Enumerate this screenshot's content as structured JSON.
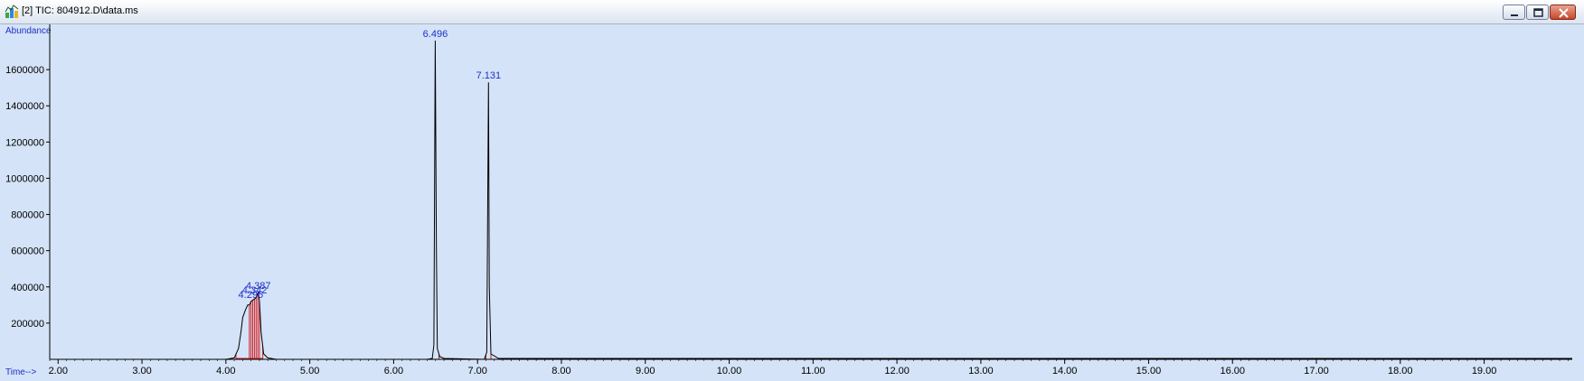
{
  "window": {
    "title": "[2] TIC: 804912.D\\data.ms",
    "icon": "chromatogram-app-icon",
    "buttons": [
      "minimize-icon",
      "restore-icon",
      "close-icon"
    ]
  },
  "chart_data": {
    "type": "line",
    "title": "",
    "ylabel": "Abundance",
    "xlabel": "Time-->",
    "xlim": [
      1.9,
      20.05
    ],
    "ylim": [
      0,
      1800000
    ],
    "xticks": [
      "2.00",
      "3.00",
      "4.00",
      "5.00",
      "6.00",
      "7.00",
      "8.00",
      "9.00",
      "10.00",
      "11.00",
      "12.00",
      "13.00",
      "14.00",
      "15.00",
      "16.00",
      "17.00",
      "18.00",
      "19.00"
    ],
    "yticks": [
      "200000",
      "400000",
      "600000",
      "800000",
      "1000000",
      "1200000",
      "1400000",
      "1600000"
    ],
    "series": [
      {
        "color": "#000000",
        "x": [
          1.9,
          4.0,
          4.1,
          4.15,
          4.18,
          4.2,
          4.23,
          4.26,
          4.28,
          4.3,
          4.33,
          4.36,
          4.387,
          4.4,
          4.42,
          4.45,
          4.5,
          4.6,
          6.4,
          6.46,
          6.48,
          6.496,
          6.51,
          6.52,
          6.55,
          6.6,
          7.08,
          7.11,
          7.131,
          7.14,
          7.16,
          7.25,
          20.05
        ],
        "y": [
          0,
          0,
          8000,
          60000,
          150000,
          230000,
          270000,
          300000,
          300000,
          320000,
          330000,
          340000,
          370000,
          320000,
          150000,
          30000,
          8000,
          0,
          0,
          5000,
          80000,
          1760000,
          600000,
          60000,
          15000,
          5000,
          0,
          40000,
          1530000,
          400000,
          30000,
          5000,
          5000
        ]
      }
    ],
    "peaks": [
      {
        "label": "4.296",
        "x": 4.296,
        "y": 320000
      },
      {
        "label": "4.342",
        "x": 4.342,
        "y": 345000
      },
      {
        "label": "4.387",
        "x": 4.387,
        "y": 370000
      },
      {
        "label": "6.496",
        "x": 6.496,
        "y": 1760000
      },
      {
        "label": "7.131",
        "x": 7.131,
        "y": 1530000
      }
    ],
    "integration_marks": [
      4.12,
      4.28,
      4.3,
      4.32,
      4.34,
      4.36,
      4.38,
      4.4,
      4.44,
      6.46,
      6.54,
      7.1,
      7.16
    ],
    "colors": {
      "background": "#d4e3f7",
      "trace": "#000000",
      "labels": "#1f2fc9",
      "integration": "#d02020"
    },
    "grid": false
  }
}
